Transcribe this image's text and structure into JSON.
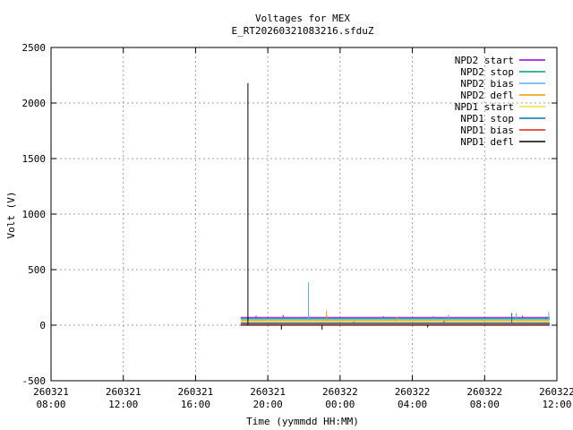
{
  "chart_data": {
    "type": "line",
    "title": "Voltages for MEX",
    "subtitle": "E_RT20260321083216.sfduZ",
    "xlabel": "Time (yymmdd HH:MM)",
    "ylabel": "Volt (V)",
    "xlim": [
      "260321 08:00",
      "260322 12:00"
    ],
    "ylim": [
      -500,
      2500
    ],
    "grid": true,
    "legend_position": "top-right",
    "x_ticks": [
      {
        "date": "260321",
        "time": "08:00",
        "hours": 0
      },
      {
        "date": "260321",
        "time": "12:00",
        "hours": 4
      },
      {
        "date": "260321",
        "time": "16:00",
        "hours": 8
      },
      {
        "date": "260321",
        "time": "20:00",
        "hours": 12
      },
      {
        "date": "260322",
        "time": "00:00",
        "hours": 16
      },
      {
        "date": "260322",
        "time": "04:00",
        "hours": 20
      },
      {
        "date": "260322",
        "time": "08:00",
        "hours": 24
      },
      {
        "date": "260322",
        "time": "12:00",
        "hours": 28
      }
    ],
    "y_ticks": [
      -500,
      0,
      500,
      1000,
      1500,
      2000,
      2500
    ],
    "series": [
      {
        "name": "NPD2 start",
        "color": "#9400d3",
        "base": 70,
        "x": [
          10.5,
          12.2,
          13.5,
          17.0,
          19.8,
          22.5,
          25.0,
          27.2,
          27.6
        ],
        "y": [
          75,
          85,
          90,
          82,
          80,
          78,
          74,
          85,
          50
        ]
      },
      {
        "name": "NPD2 stop",
        "color": "#009e73",
        "base": 60,
        "x": [
          10.5,
          14.0,
          17.5,
          21.5,
          24.5,
          27.6
        ],
        "y": [
          60,
          62,
          66,
          64,
          58,
          55
        ]
      },
      {
        "name": "NPD2 bias",
        "color": "#56b4e9",
        "base": 50,
        "x": [
          10.5,
          12.0,
          16.5,
          20.0,
          24.0,
          27.5,
          27.6
        ],
        "y": [
          50,
          55,
          385,
          60,
          95,
          110,
          120
        ]
      },
      {
        "name": "NPD2 defl",
        "color": "#e69f00",
        "base": 40,
        "x": [
          10.5,
          13.0,
          17.5,
          20.8,
          23.0,
          27.6
        ],
        "y": [
          40,
          60,
          130,
          75,
          55,
          40
        ]
      },
      {
        "name": "NPD1 start",
        "color": "#f0e442",
        "base": 30,
        "x": [
          10.5,
          13.5,
          17.0,
          21.5,
          24.5,
          27.6
        ],
        "y": [
          30,
          45,
          40,
          50,
          35,
          30
        ]
      },
      {
        "name": "NPD1 stop",
        "color": "#0072b2",
        "base": 20,
        "x": [
          10.5,
          13.5,
          20.0,
          23.5,
          27.5,
          27.6
        ],
        "y": [
          20,
          25,
          30,
          40,
          110,
          20
        ]
      },
      {
        "name": "NPD1 bias",
        "color": "#e51e10",
        "base": 10,
        "x": [
          10.5,
          18.0,
          27.6
        ],
        "y": [
          10,
          12,
          10
        ]
      },
      {
        "name": "NPD1 defl",
        "color": "#000000",
        "base": 0,
        "x": [
          10.5,
          11.3,
          12.0,
          13.5,
          16.5,
          25.2,
          27.6
        ],
        "y": [
          0,
          2180,
          0,
          -40,
          -40,
          -20,
          0
        ]
      }
    ]
  }
}
